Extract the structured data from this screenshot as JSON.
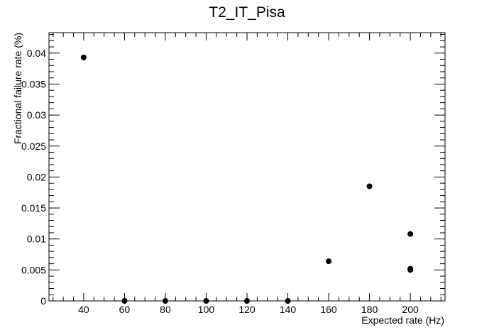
{
  "chart_data": {
    "type": "scatter",
    "title": "T2_IT_Pisa",
    "xlabel": "Expected rate (Hz)",
    "ylabel": "Fractional failure rate (%)",
    "xlim": [
      23,
      217
    ],
    "ylim": [
      0,
      0.0433
    ],
    "xticks": [
      40,
      60,
      80,
      100,
      120,
      140,
      160,
      180,
      200
    ],
    "yticks": [
      0,
      0.005,
      0.01,
      0.015,
      0.02,
      0.025,
      0.03,
      0.035,
      0.04
    ],
    "xtick_labels": [
      "40",
      "60",
      "80",
      "100",
      "120",
      "140",
      "160",
      "180",
      "200"
    ],
    "ytick_labels": [
      "0",
      "0.005",
      "0.01",
      "0.015",
      "0.02",
      "0.025",
      "0.03",
      "0.035",
      "0.04"
    ],
    "grid": false,
    "marker_color": "#000000",
    "points": [
      {
        "x": 40,
        "y": 0.0393
      },
      {
        "x": 60,
        "y": 0
      },
      {
        "x": 80,
        "y": 0
      },
      {
        "x": 100,
        "y": 0
      },
      {
        "x": 120,
        "y": 0
      },
      {
        "x": 140,
        "y": 0
      },
      {
        "x": 160,
        "y": 0.0064
      },
      {
        "x": 180,
        "y": 0.0185
      },
      {
        "x": 200,
        "y": 0.0108
      },
      {
        "x": 200,
        "y": 0.0052
      },
      {
        "x": 200,
        "y": 0.005
      }
    ]
  }
}
